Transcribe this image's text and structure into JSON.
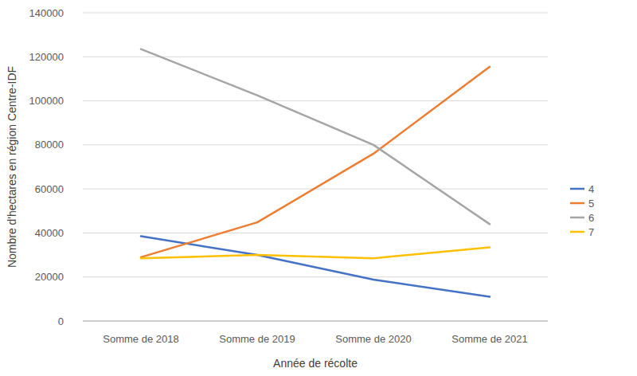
{
  "chart_data": {
    "type": "line",
    "x_label": "Année de récolte",
    "y_label": "Nombre d'hectares en région Centre-IDF",
    "categories": [
      "Somme de 2018",
      "Somme de 2019",
      "Somme de 2020",
      "Somme de 2021"
    ],
    "series": [
      {
        "name": "4",
        "color": "#4472c4",
        "values": [
          38500,
          30000,
          18800,
          11000
        ]
      },
      {
        "name": "5",
        "color": "#ed7d31",
        "values": [
          29000,
          44800,
          76000,
          115500
        ]
      },
      {
        "name": "6",
        "color": "#a5a5a5",
        "values": [
          123500,
          102500,
          80000,
          44000
        ]
      },
      {
        "name": "7",
        "color": "#ffc000",
        "values": [
          28500,
          30000,
          28500,
          33500
        ]
      }
    ],
    "ylim": [
      0,
      140000
    ],
    "yticks": [
      0,
      20000,
      40000,
      60000,
      80000,
      100000,
      120000,
      140000
    ],
    "grid": true,
    "legend": "right"
  }
}
